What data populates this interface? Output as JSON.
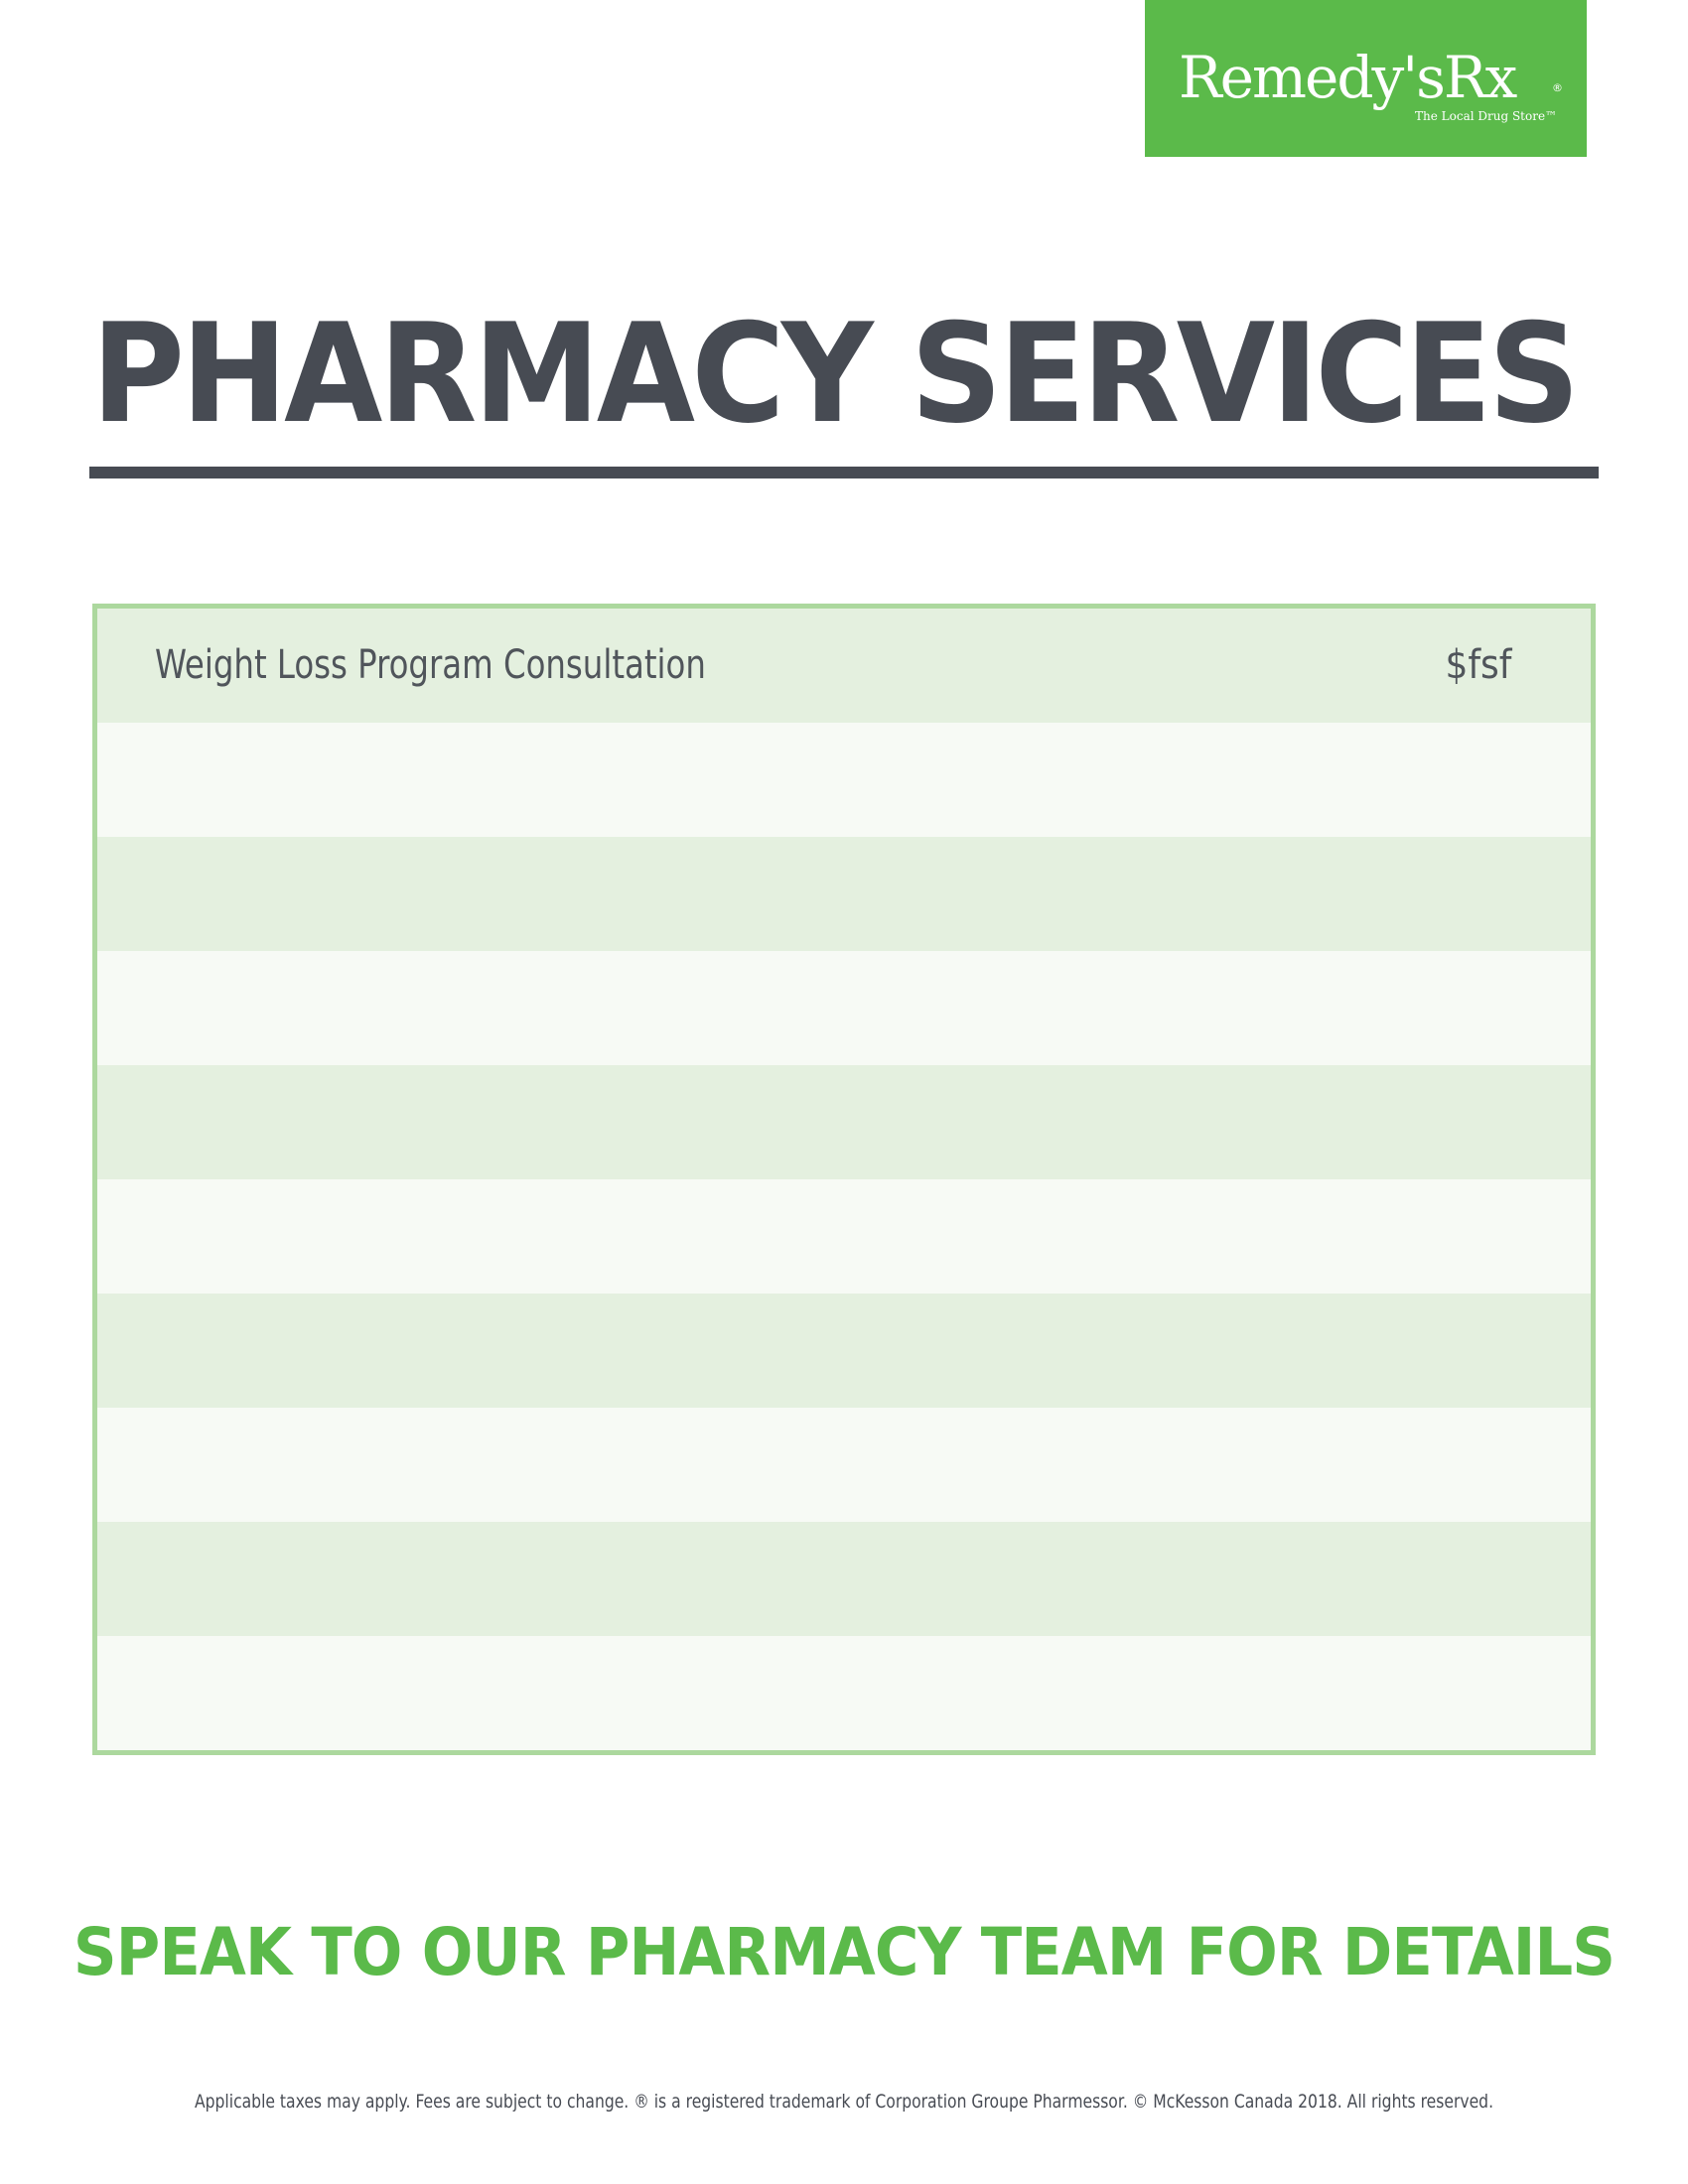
{
  "brand": {
    "name": "Remedy'sRx",
    "registered": "®",
    "tagline": "The Local Drug Store™",
    "color": "#5bba4a"
  },
  "title": "PHARMACY SERVICES",
  "services": [
    {
      "name": "Weight Loss Program Consultation",
      "price": "$fsf"
    },
    {
      "name": "",
      "price": ""
    },
    {
      "name": "",
      "price": ""
    },
    {
      "name": "",
      "price": ""
    },
    {
      "name": "",
      "price": ""
    },
    {
      "name": "",
      "price": ""
    },
    {
      "name": "",
      "price": ""
    },
    {
      "name": "",
      "price": ""
    },
    {
      "name": "",
      "price": ""
    },
    {
      "name": "",
      "price": ""
    }
  ],
  "cta": "SPEAK TO OUR PHARMACY TEAM FOR DETAILS",
  "disclaimer": "Applicable taxes may apply. Fees are subject to change. ® is a registered trademark of Corporation Groupe Pharmessor. © McKesson Canada 2018. All rights reserved."
}
